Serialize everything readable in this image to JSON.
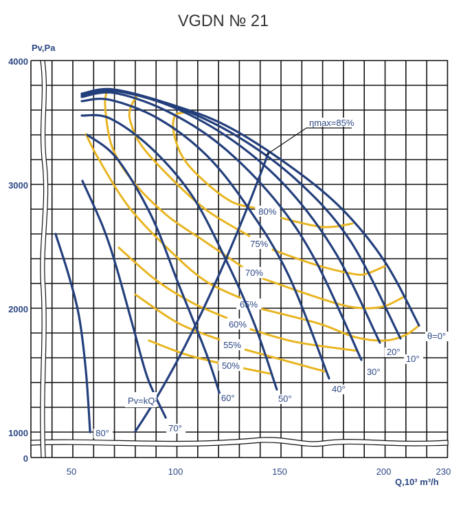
{
  "chart_data": {
    "type": "line",
    "title": "VGDN № 21",
    "xlabel": "Q,10³ m³/h",
    "ylabel": "Pv,Pa",
    "xlim": [
      30,
      230
    ],
    "ylim": [
      0,
      4000
    ],
    "y_axis_break": [
      0,
      1000
    ],
    "grid": true,
    "x_ticks": [
      {
        "value": 50,
        "label": "50"
      },
      {
        "value": 100,
        "label": "100"
      },
      {
        "value": 150,
        "label": "150"
      },
      {
        "value": 200,
        "label": "200"
      },
      {
        "value": 230,
        "label": "230"
      }
    ],
    "y_ticks": [
      {
        "value": 4000,
        "label": "4000"
      },
      {
        "value": 3000,
        "label": "3000"
      },
      {
        "value": 2000,
        "label": "2000"
      },
      {
        "value": 1000,
        "label": "1000"
      },
      {
        "value": 0,
        "label": "0"
      }
    ],
    "blade_angle_curves": [
      {
        "label": "θ=0°",
        "points": [
          [
            54.3,
            3733
          ],
          [
            69.5,
            3767
          ],
          [
            97.5,
            3644
          ],
          [
            123.9,
            3472
          ],
          [
            153.6,
            3156
          ],
          [
            179,
            2806
          ],
          [
            199.8,
            2378
          ],
          [
            216.3,
            1861
          ]
        ]
      },
      {
        "label": "10°",
        "points": [
          [
            54.3,
            3728
          ],
          [
            69.5,
            3761
          ],
          [
            97.5,
            3639
          ],
          [
            127.2,
            3406
          ],
          [
            156.9,
            3044
          ],
          [
            183.3,
            2544
          ],
          [
            207.4,
            1756
          ]
        ]
      },
      {
        "label": "20°",
        "points": [
          [
            54.3,
            3717
          ],
          [
            69.5,
            3756
          ],
          [
            97.5,
            3628
          ],
          [
            127.2,
            3350
          ],
          [
            153.6,
            2961
          ],
          [
            176.7,
            2433
          ],
          [
            197.5,
            1722
          ]
        ]
      },
      {
        "label": "30°",
        "points": [
          [
            54.3,
            3706
          ],
          [
            69.5,
            3739
          ],
          [
            94.2,
            3600
          ],
          [
            120.6,
            3322
          ],
          [
            147,
            2878
          ],
          [
            166.8,
            2378
          ],
          [
            188.6,
            1583
          ]
        ]
      },
      {
        "label": "40°",
        "points": [
          [
            54.3,
            3672
          ],
          [
            67.8,
            3683
          ],
          [
            90.9,
            3533
          ],
          [
            114,
            3239
          ],
          [
            133.8,
            2822
          ],
          [
            153.6,
            2267
          ],
          [
            173.1,
            1433
          ]
        ]
      },
      {
        "label": "50°",
        "points": [
          [
            54.3,
            3556
          ],
          [
            67.8,
            3533
          ],
          [
            87.6,
            3294
          ],
          [
            107.4,
            2906
          ],
          [
            123.9,
            2378
          ],
          [
            137.1,
            1878
          ],
          [
            148,
            1344
          ]
        ]
      },
      {
        "label": "60°",
        "points": [
          [
            56.9,
            3400
          ],
          [
            71.1,
            3211
          ],
          [
            87.6,
            2750
          ],
          [
            100.8,
            2194
          ],
          [
            114,
            1639
          ],
          [
            120.6,
            1306
          ]
        ]
      },
      {
        "label": "70°",
        "points": [
          [
            54.6,
            3028
          ],
          [
            64.5,
            2656
          ],
          [
            71.1,
            2322
          ],
          [
            79.4,
            1822
          ],
          [
            86,
            1433
          ],
          [
            94.6,
            1117
          ]
        ]
      },
      {
        "label": "80°",
        "points": [
          [
            41.7,
            2600
          ],
          [
            48,
            2267
          ],
          [
            53,
            1933
          ],
          [
            56.3,
            1489
          ],
          [
            58.3,
            1000
          ]
        ]
      }
    ],
    "efficiency_curves": [
      {
        "label": "80%",
        "left": [
          [
            105.1,
            3583
          ],
          [
            99.2,
            3556
          ],
          [
            98.5,
            3417
          ],
          [
            103.1,
            3211
          ],
          [
            113,
            3028
          ],
          [
            126.2,
            2861
          ],
          [
            137.1,
            2811
          ]
        ],
        "label_at": [
          143.5,
          2778
        ],
        "right": [
          [
            150.3,
            2728
          ],
          [
            170.1,
            2656
          ],
          [
            184.3,
            2683
          ]
        ]
      },
      {
        "label": "75%",
        "left": [
          [
            81,
            3722
          ],
          [
            77.7,
            3617
          ],
          [
            77.7,
            3506
          ],
          [
            83.3,
            3306
          ],
          [
            98.5,
            3028
          ],
          [
            115,
            2783
          ],
          [
            134.8,
            2583
          ]
        ],
        "label_at": [
          139.5,
          2517
        ],
        "right": [
          [
            146,
            2472
          ],
          [
            166.8,
            2350
          ],
          [
            184.3,
            2278
          ],
          [
            190.9,
            2278
          ],
          [
            199.8,
            2339
          ]
        ]
      },
      {
        "label": "70%",
        "left": [
          [
            66.8,
            3767
          ],
          [
            65.5,
            3639
          ],
          [
            68.8,
            3306
          ],
          [
            78.7,
            3028
          ],
          [
            95.2,
            2750
          ],
          [
            113,
            2544
          ],
          [
            131.5,
            2333
          ]
        ],
        "label_at": [
          137.1,
          2283
        ],
        "right": [
          [
            141.4,
            2239
          ],
          [
            160.2,
            2128
          ],
          [
            179,
            2028
          ],
          [
            190,
            2000
          ],
          [
            199.8,
            2017
          ],
          [
            208.7,
            2089
          ]
        ]
      },
      {
        "label": "65%",
        "left": [
          [
            56.3,
            3406
          ],
          [
            62.2,
            3211
          ],
          [
            76.7,
            2822
          ],
          [
            95.2,
            2489
          ],
          [
            113,
            2228
          ],
          [
            130.5,
            2083
          ]
        ],
        "label_at": [
          134.5,
          2028
        ],
        "right": [
          [
            139.4,
            2000
          ],
          [
            167.8,
            1878
          ],
          [
            185.6,
            1767
          ],
          [
            199.8,
            1739
          ],
          [
            209.7,
            1783
          ],
          [
            216.3,
            1861
          ]
        ]
      },
      {
        "label": "60%",
        "left": [
          [
            72.1,
            2489
          ],
          [
            89.9,
            2228
          ],
          [
            107.4,
            2044
          ],
          [
            123.9,
            1922
          ]
        ],
        "label_at": [
          129.2,
          1867
        ],
        "right": [
          [
            134.8,
            1833
          ],
          [
            156.9,
            1728
          ],
          [
            186.6,
            1656
          ]
        ]
      },
      {
        "label": "55%",
        "left": [
          [
            80,
            2111
          ],
          [
            100.8,
            1878
          ],
          [
            121.6,
            1739
          ]
        ],
        "label_at": [
          126.6,
          1700
        ],
        "right": [
          [
            131.5,
            1672
          ],
          [
            171.1,
            1489
          ]
        ]
      },
      {
        "label": "50%",
        "left": [
          [
            86.6,
            1739
          ],
          [
            104,
            1628
          ],
          [
            120.6,
            1556
          ]
        ],
        "label_at": [
          125.9,
          1533
        ],
        "right": [
          [
            131.5,
            1517
          ],
          [
            144.7,
            1472
          ]
        ]
      }
    ],
    "system_curve": {
      "label": "Pv=kQ²",
      "label_main": "Pv=kQ",
      "label_sup": "2",
      "k": 0.157,
      "q_range": [
        80,
        144
      ]
    },
    "annotation": {
      "label": "ηmax=85%"
    },
    "colors": {
      "blade": "#233f7c",
      "efficiency": "#e8b520",
      "text": "#2b4784",
      "grid": "#111111"
    }
  }
}
